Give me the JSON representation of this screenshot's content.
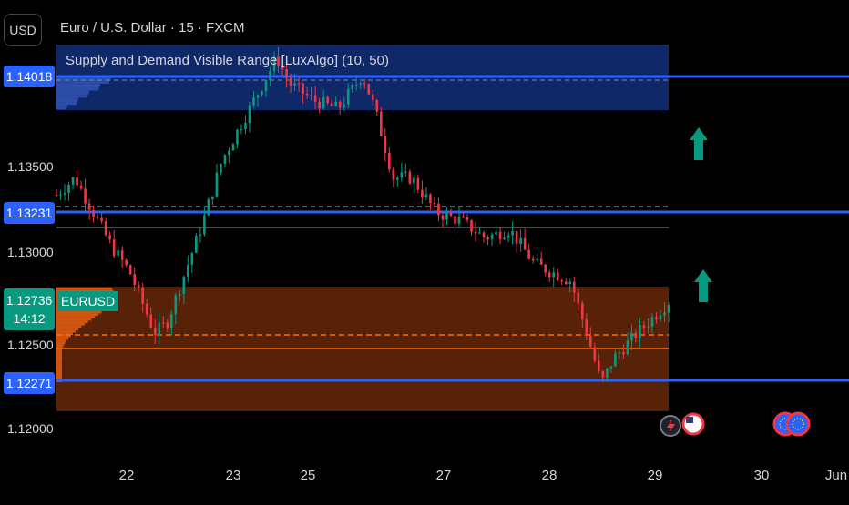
{
  "header": {
    "currency": "USD",
    "title": "Euro / U.S. Dollar · 15 · FXCM",
    "indicator": "Supply and Demand Visible Range [LuxAlgo] (10, 50)"
  },
  "price_tags": [
    {
      "id": "level-1",
      "label": "1.14018",
      "color": "#2962ff"
    },
    {
      "id": "level-2",
      "label": "1.13231",
      "color": "#2962ff"
    },
    {
      "id": "last-price",
      "label": "1.12736",
      "sub": "14:12",
      "color": "#089981"
    },
    {
      "id": "level-3",
      "label": "1.12271",
      "color": "#2962ff"
    }
  ],
  "symbol_tag": "EURUSD",
  "colors": {
    "up": "#089981",
    "down": "#f23645",
    "supply": "#0f2a6e",
    "demand": "#5c2407",
    "level_line": "#2962ff",
    "demand_line": "#ff6d00"
  },
  "chart_data": {
    "type": "candlestick",
    "title": "Euro / U.S. Dollar · 15 · FXCM",
    "y_ticks": [
      "1.13500",
      "1.13000",
      "1.12500",
      "1.12000"
    ],
    "x_ticks": [
      "22",
      "23",
      "25",
      "27",
      "28",
      "29",
      "30",
      "Jun"
    ],
    "ylim": [
      1.1195,
      1.1425
    ],
    "zones": [
      {
        "name": "supply",
        "top": 1.1424,
        "bottom": 1.1392
      },
      {
        "name": "demand",
        "top": 1.1275,
        "bottom": 1.1214
      }
    ],
    "levels": [
      1.14018,
      1.13231,
      1.12271
    ],
    "last_price": 1.12736,
    "close_path": [
      [
        0,
        1.1335
      ],
      [
        0.03,
        1.1345
      ],
      [
        0.06,
        1.1325
      ],
      [
        0.09,
        1.1305
      ],
      [
        0.12,
        1.129
      ],
      [
        0.16,
        1.1255
      ],
      [
        0.18,
        1.126
      ],
      [
        0.21,
        1.129
      ],
      [
        0.24,
        1.132
      ],
      [
        0.27,
        1.1355
      ],
      [
        0.3,
        1.1375
      ],
      [
        0.33,
        1.1395
      ],
      [
        0.36,
        1.1415
      ],
      [
        0.38,
        1.14
      ],
      [
        0.42,
        1.139
      ],
      [
        0.46,
        1.1385
      ],
      [
        0.5,
        1.1405
      ],
      [
        0.52,
        1.1385
      ],
      [
        0.55,
        1.1345
      ],
      [
        0.58,
        1.1345
      ],
      [
        0.62,
        1.1325
      ],
      [
        0.66,
        1.132
      ],
      [
        0.7,
        1.131
      ],
      [
        0.74,
        1.1315
      ],
      [
        0.78,
        1.1295
      ],
      [
        0.81,
        1.129
      ],
      [
        0.84,
        1.1285
      ],
      [
        0.87,
        1.125
      ],
      [
        0.89,
        1.1225
      ],
      [
        0.91,
        1.124
      ],
      [
        0.95,
        1.1255
      ],
      [
        1,
        1.1273
      ]
    ]
  }
}
